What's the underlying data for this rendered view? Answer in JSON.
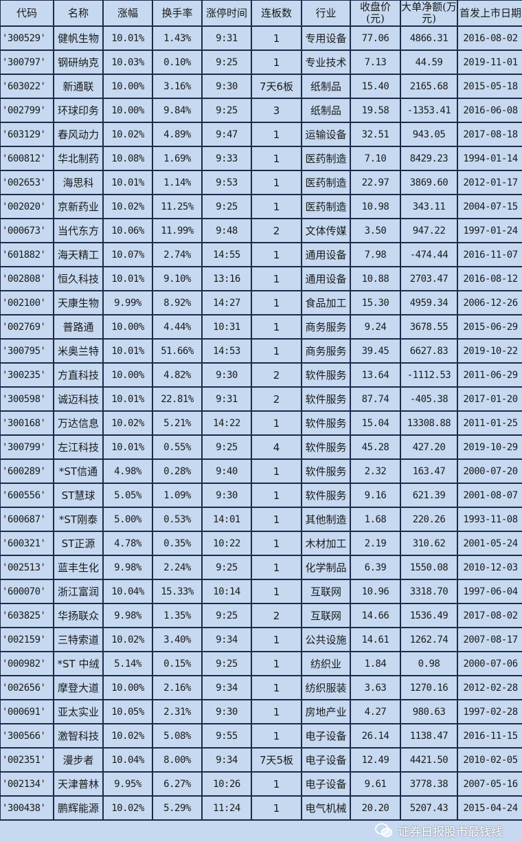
{
  "headers": [
    "代码",
    "名称",
    "涨幅",
    "换手率",
    "涨停时间",
    "连板数",
    "行业",
    "收盘价(元)",
    "大单净额(万元)",
    "首发上市日期"
  ],
  "rows": [
    [
      "'300529'",
      "健帆生物",
      "10.01%",
      "1.43%",
      "9:31",
      "1",
      "专用设备",
      "77.06",
      "4866.31",
      "2016-08-02"
    ],
    [
      "'300797'",
      "钢研纳克",
      "10.03%",
      "0.10%",
      "9:25",
      "1",
      "专业技术",
      "7.13",
      "44.59",
      "2019-11-01"
    ],
    [
      "'603022'",
      "新通联",
      "10.00%",
      "3.16%",
      "9:30",
      "7天6板",
      "纸制品",
      "15.40",
      "2165.68",
      "2015-05-18"
    ],
    [
      "'002799'",
      "环球印务",
      "10.00%",
      "9.84%",
      "9:25",
      "3",
      "纸制品",
      "19.58",
      "-1353.41",
      "2016-06-08"
    ],
    [
      "'603129'",
      "春风动力",
      "10.02%",
      "4.89%",
      "9:47",
      "1",
      "运输设备",
      "32.51",
      "943.05",
      "2017-08-18"
    ],
    [
      "'600812'",
      "华北制药",
      "10.08%",
      "1.69%",
      "9:33",
      "1",
      "医药制造",
      "7.10",
      "8429.23",
      "1994-01-14"
    ],
    [
      "'002653'",
      "海思科",
      "10.01%",
      "1.14%",
      "9:53",
      "1",
      "医药制造",
      "22.97",
      "3869.60",
      "2012-01-17"
    ],
    [
      "'002020'",
      "京新药业",
      "10.02%",
      "11.25%",
      "9:25",
      "1",
      "医药制造",
      "10.98",
      "343.11",
      "2004-07-15"
    ],
    [
      "'000673'",
      "当代东方",
      "10.06%",
      "11.99%",
      "9:48",
      "2",
      "文体传媒",
      "3.50",
      "947.22",
      "1997-01-24"
    ],
    [
      "'601882'",
      "海天精工",
      "10.07%",
      "2.74%",
      "14:55",
      "1",
      "通用设备",
      "7.98",
      "-474.44",
      "2016-11-07"
    ],
    [
      "'002808'",
      "恒久科技",
      "10.01%",
      "9.10%",
      "13:16",
      "1",
      "通用设备",
      "10.88",
      "2703.47",
      "2016-08-12"
    ],
    [
      "'002100'",
      "天康生物",
      "9.99%",
      "8.92%",
      "14:27",
      "1",
      "食品加工",
      "15.30",
      "4959.34",
      "2006-12-26"
    ],
    [
      "'002769'",
      "普路通",
      "10.00%",
      "4.44%",
      "10:31",
      "1",
      "商务服务",
      "9.24",
      "3678.55",
      "2015-06-29"
    ],
    [
      "'300795'",
      "米奥兰特",
      "10.01%",
      "51.66%",
      "14:53",
      "1",
      "商务服务",
      "39.45",
      "6627.83",
      "2019-10-22"
    ],
    [
      "'300235'",
      "方直科技",
      "10.00%",
      "4.82%",
      "9:30",
      "2",
      "软件服务",
      "13.64",
      "-1112.53",
      "2011-06-29"
    ],
    [
      "'300598'",
      "诚迈科技",
      "10.01%",
      "22.81%",
      "9:31",
      "2",
      "软件服务",
      "87.74",
      "-405.38",
      "2017-01-20"
    ],
    [
      "'300168'",
      "万达信息",
      "10.02%",
      "5.21%",
      "14:22",
      "1",
      "软件服务",
      "15.04",
      "13308.88",
      "2011-01-25"
    ],
    [
      "'300799'",
      "左江科技",
      "10.01%",
      "0.55%",
      "9:25",
      "4",
      "软件服务",
      "45.28",
      "427.20",
      "2019-10-29"
    ],
    [
      "'600289'",
      "*ST信通",
      "4.98%",
      "0.28%",
      "9:40",
      "1",
      "软件服务",
      "2.32",
      "163.47",
      "2000-07-20"
    ],
    [
      "'600556'",
      "ST慧球",
      "5.05%",
      "1.09%",
      "9:30",
      "1",
      "软件服务",
      "9.16",
      "621.39",
      "2001-08-07"
    ],
    [
      "'600687'",
      "*ST刚泰",
      "5.00%",
      "0.53%",
      "14:01",
      "1",
      "其他制造",
      "1.68",
      "220.26",
      "1993-11-08"
    ],
    [
      "'600321'",
      "ST正源",
      "4.78%",
      "0.35%",
      "10:22",
      "1",
      "木材加工",
      "2.19",
      "310.62",
      "2001-05-24"
    ],
    [
      "'002513'",
      "蓝丰生化",
      "9.98%",
      "2.24%",
      "9:25",
      "1",
      "化学制品",
      "6.39",
      "1550.08",
      "2010-12-03"
    ],
    [
      "'600070'",
      "浙江富润",
      "10.04%",
      "15.33%",
      "10:14",
      "1",
      "互联网",
      "10.96",
      "3318.70",
      "1997-06-04"
    ],
    [
      "'603825'",
      "华扬联众",
      "9.98%",
      "1.35%",
      "9:25",
      "2",
      "互联网",
      "14.66",
      "1536.49",
      "2017-08-02"
    ],
    [
      "'002159'",
      "三特索道",
      "10.02%",
      "3.40%",
      "9:34",
      "1",
      "公共设施",
      "14.61",
      "1262.74",
      "2007-08-17"
    ],
    [
      "'000982'",
      "*ST 中绒",
      "5.14%",
      "0.15%",
      "9:25",
      "1",
      "纺织业",
      "1.84",
      "0.98",
      "2000-07-06"
    ],
    [
      "'002656'",
      "摩登大道",
      "10.00%",
      "2.16%",
      "9:34",
      "1",
      "纺织服装",
      "3.63",
      "1270.16",
      "2012-02-28"
    ],
    [
      "'000691'",
      "亚太实业",
      "10.05%",
      "2.31%",
      "9:30",
      "1",
      "房地产业",
      "4.27",
      "980.63",
      "1997-02-28"
    ],
    [
      "'300566'",
      "激智科技",
      "10.02%",
      "5.08%",
      "9:55",
      "1",
      "电子设备",
      "26.14",
      "1138.47",
      "2016-11-15"
    ],
    [
      "'002351'",
      "漫步者",
      "10.04%",
      "8.00%",
      "9:34",
      "7天5板",
      "电子设备",
      "12.49",
      "4421.50",
      "2010-02-05"
    ],
    [
      "'002134'",
      "天津普林",
      "9.95%",
      "6.27%",
      "10:26",
      "1",
      "电子设备",
      "9.61",
      "3778.38",
      "2007-05-16"
    ],
    [
      "'300438'",
      "鹏辉能源",
      "10.02%",
      "5.29%",
      "11:24",
      "1",
      "电气机械",
      "20.20",
      "5207.43",
      "2015-04-24"
    ]
  ],
  "watermark": {
    "text": "证券日报股市最钱线",
    "icon": "wechat-icon"
  },
  "colors": {
    "background": "#c6d9f0",
    "border": "#1c2a48"
  }
}
